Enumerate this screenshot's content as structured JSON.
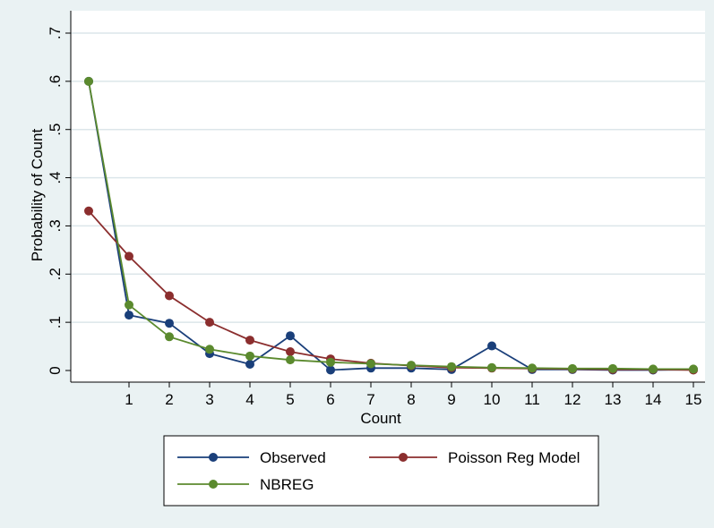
{
  "chart_data": {
    "type": "line",
    "title": "",
    "xlabel": "Count",
    "ylabel": "Probability of Count",
    "x": [
      0,
      1,
      2,
      3,
      4,
      5,
      6,
      7,
      8,
      9,
      10,
      11,
      12,
      13,
      14,
      15
    ],
    "x_tick_labels": [
      "1",
      "2",
      "3",
      "4",
      "5",
      "6",
      "7",
      "8",
      "9",
      "10",
      "11",
      "12",
      "13",
      "14",
      "15"
    ],
    "y_tick_labels": [
      "0",
      ".1",
      ".2",
      ".3",
      ".4",
      ".5",
      ".6",
      ".7"
    ],
    "xlim": [
      0,
      15
    ],
    "ylim": [
      0,
      0.7
    ],
    "grid": true,
    "legend_position": "bottom",
    "series": [
      {
        "name": "Observed",
        "color": "#1a3f7a",
        "values": [
          0.6,
          0.115,
          0.098,
          0.035,
          0.013,
          0.072,
          0.001,
          0.005,
          0.005,
          0.002,
          0.051,
          0.002,
          0.002,
          0.001,
          0.001,
          0.002
        ]
      },
      {
        "name": "Poisson Reg Model",
        "color": "#8b2e2e",
        "values": [
          0.331,
          0.237,
          0.155,
          0.1,
          0.063,
          0.039,
          0.024,
          0.015,
          0.01,
          0.006,
          0.005,
          0.004,
          0.003,
          0.002,
          0.002,
          0.001
        ]
      },
      {
        "name": "NBREG",
        "color": "#5b8a2e",
        "values": [
          0.6,
          0.136,
          0.07,
          0.044,
          0.03,
          0.022,
          0.017,
          0.014,
          0.011,
          0.008,
          0.006,
          0.005,
          0.004,
          0.004,
          0.003,
          0.003
        ]
      }
    ]
  }
}
